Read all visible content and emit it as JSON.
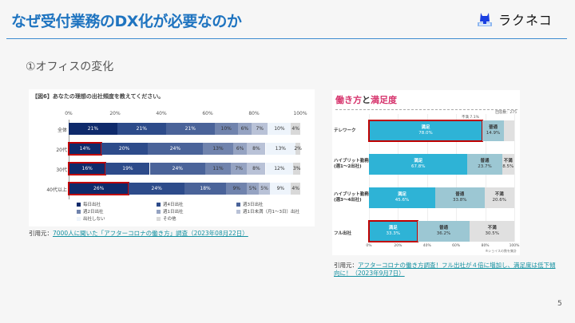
{
  "header": {
    "title": "なぜ受付業務のDX化が必要なのか",
    "logo_text": "ラクネコ",
    "logo_icon": "cat-icon"
  },
  "subtitle": "①オフィスの変化",
  "colors": {
    "title": "#1f74c0",
    "accent_pink": "#d6336c",
    "highlight": "#c00000",
    "link": "#1290a0"
  },
  "chart_data": [
    {
      "type": "bar",
      "orientation": "horizontal-stacked",
      "title": "【図6】あなたの理想の出社頻度を教えてください。",
      "xlim": [
        0,
        100
      ],
      "x_ticks": [
        "0%",
        "20%",
        "40%",
        "60%",
        "80%",
        "100%"
      ],
      "categories": [
        "全体",
        "20代",
        "30代",
        "40代以上"
      ],
      "series": [
        {
          "name": "毎日出社",
          "color": "#0f2a6b",
          "values": [
            21,
            14,
            16,
            26
          ]
        },
        {
          "name": "週4日出社",
          "color": "#2d4b8a",
          "values": [
            21,
            20,
            19,
            24
          ]
        },
        {
          "name": "週3日出社",
          "color": "#4a6399",
          "values": [
            21,
            24,
            24,
            18
          ]
        },
        {
          "name": "週2日出社",
          "color": "#7083ad",
          "values": [
            10,
            13,
            11,
            9
          ]
        },
        {
          "name": "週1日出社",
          "color": "#95a3c2",
          "values": [
            6,
            6,
            7,
            5
          ]
        },
        {
          "name": "週1日未満（月1〜3日）出社",
          "color": "#b9c2d7",
          "values": [
            7,
            8,
            8,
            5
          ]
        },
        {
          "name": "出社しない",
          "color": "#eef4fb",
          "values": [
            10,
            13,
            12,
            9
          ]
        },
        {
          "name": "その他",
          "color": "#d9d9d9",
          "values": [
            4,
            2,
            3,
            4
          ]
        }
      ],
      "highlighted": [
        "20代:毎日出社",
        "30代:毎日出社",
        "40代以上:毎日出社"
      ]
    },
    {
      "type": "bar",
      "orientation": "horizontal-stacked",
      "title_part1": "働き方",
      "title_part2": "と",
      "title_part3": "満足度",
      "annotation": "回答数：275",
      "note": "※ショイスの数を集計",
      "xlim": [
        0,
        100
      ],
      "x_ticks": [
        "0%",
        "20%",
        "40%",
        "60%",
        "80%",
        "100%"
      ],
      "categories": [
        "テレワーク",
        "ハイブリット勤務\n(週1〜2出社)",
        "ハイブリット勤務\n(週3〜4出社)",
        "フル出社"
      ],
      "series": [
        {
          "name": "満足",
          "color": "#2eb3d6",
          "values": [
            78.0,
            67.8,
            45.6,
            33.3
          ]
        },
        {
          "name": "普通",
          "color": "#9cc7d3",
          "values": [
            14.9,
            23.7,
            33.8,
            36.2
          ]
        },
        {
          "name": "不満",
          "color": "#e0e0e0",
          "values": [
            7.1,
            8.5,
            20.6,
            30.5
          ]
        }
      ],
      "highlighted": [
        "テレワーク:満足",
        "フル出社:満足"
      ]
    }
  ],
  "chart1_labels": {
    "row_labels": [
      "全体",
      "20代",
      "30代",
      "40代以上"
    ]
  },
  "chart2_labels": {
    "row1": "テレワーク",
    "row2a": "ハイブリット勤務",
    "row2b": "(週1〜2出社)",
    "row3a": "ハイブリット勤務",
    "row3b": "(週3〜4出社)",
    "row4": "フル出社",
    "fuman_callout": "不満 7.1%"
  },
  "citations": {
    "left_prefix": "引用元：",
    "left_link": "7000人に聞いた「アフターコロナの働き方」調査（2023年08月22日）",
    "right_prefix": "引用元：",
    "right_link": "アフターコロナの働き方調査！フル出社が４倍に増加し、満足度は低下傾向に！（2023年9月7日）"
  },
  "page_number": "5"
}
